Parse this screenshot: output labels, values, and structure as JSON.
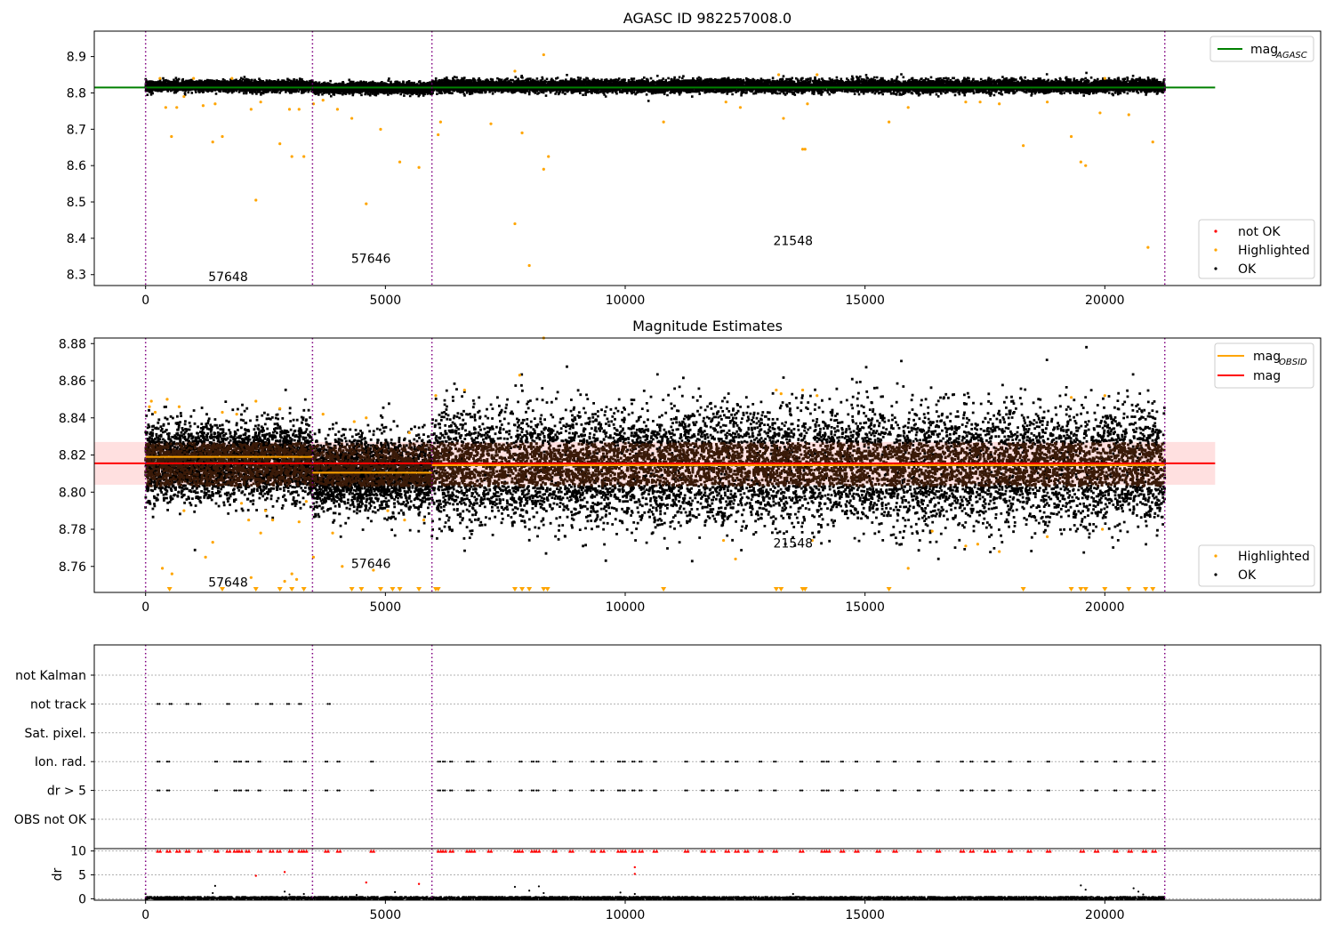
{
  "chart_data": [
    {
      "type": "scatter",
      "title": "AGASC ID 982257008.0",
      "xlabel": "",
      "ylabel": "",
      "xlim": [
        -1070,
        24500
      ],
      "ylim": [
        8.27,
        8.97
      ],
      "xticks": [
        0,
        5000,
        10000,
        15000,
        20000
      ],
      "yticks": [
        8.3,
        8.4,
        8.5,
        8.6,
        8.7,
        8.8,
        8.9
      ],
      "ytick_labels": [
        "8.3",
        "8.4",
        "8.5",
        "8.6",
        "8.7",
        "8.8",
        "8.9"
      ],
      "xtick_labels": [
        "0",
        "5000",
        "10000",
        "15000",
        "20000"
      ],
      "obsid_boundaries": [
        0,
        3480,
        5970,
        21250
      ],
      "obsid_labels": [
        {
          "text": "57648",
          "x": 1720,
          "y": 8.295
        },
        {
          "text": "57646",
          "x": 4700,
          "y": 8.345
        },
        {
          "text": "21548",
          "x": 13500,
          "y": 8.393
        }
      ],
      "mag_agasc": 8.815,
      "mag_agasc_xrange": [
        -1070,
        22300
      ],
      "legend_lines": [
        {
          "label": "mag",
          "sub": "AGASC",
          "color": "#008000"
        }
      ],
      "legend_points": [
        {
          "label": "not OK",
          "color": "#ff0000"
        },
        {
          "label": "Highlighted",
          "color": "#ffa500"
        },
        {
          "label": "OK",
          "color": "#000000"
        }
      ],
      "ok_segments": [
        {
          "x0": 0,
          "x1": 3480,
          "mean": 8.822,
          "spread": 0.014
        },
        {
          "x0": 3480,
          "x1": 5970,
          "mean": 8.816,
          "spread": 0.014
        },
        {
          "x0": 5970,
          "x1": 21250,
          "mean": 8.822,
          "spread": 0.017
        }
      ],
      "highlighted_points": [
        [
          300,
          8.84
        ],
        [
          420,
          8.76
        ],
        [
          540,
          8.68
        ],
        [
          650,
          8.76
        ],
        [
          800,
          8.79
        ],
        [
          1000,
          8.84
        ],
        [
          1200,
          8.765
        ],
        [
          1400,
          8.665
        ],
        [
          1450,
          8.77
        ],
        [
          1600,
          8.68
        ],
        [
          1800,
          8.84
        ],
        [
          2200,
          8.755
        ],
        [
          2300,
          8.505
        ],
        [
          2400,
          8.775
        ],
        [
          2800,
          8.66
        ],
        [
          3000,
          8.755
        ],
        [
          3050,
          8.625
        ],
        [
          3200,
          8.755
        ],
        [
          3300,
          8.625
        ],
        [
          3500,
          8.77
        ],
        [
          3700,
          8.78
        ],
        [
          4000,
          8.755
        ],
        [
          4300,
          8.73
        ],
        [
          4600,
          8.495
        ],
        [
          4900,
          8.7
        ],
        [
          5300,
          8.61
        ],
        [
          5700,
          8.595
        ],
        [
          6100,
          8.685
        ],
        [
          6150,
          8.72
        ],
        [
          7200,
          8.715
        ],
        [
          7700,
          8.86
        ],
        [
          7700,
          8.44
        ],
        [
          7850,
          8.69
        ],
        [
          8000,
          8.325
        ],
        [
          8300,
          8.59
        ],
        [
          8300,
          8.905
        ],
        [
          8400,
          8.625
        ],
        [
          10800,
          8.72
        ],
        [
          12100,
          8.775
        ],
        [
          12400,
          8.76
        ],
        [
          13200,
          8.85
        ],
        [
          13300,
          8.73
        ],
        [
          13700,
          8.645
        ],
        [
          13750,
          8.645
        ],
        [
          13800,
          8.77
        ],
        [
          14000,
          8.85
        ],
        [
          15500,
          8.72
        ],
        [
          15900,
          8.76
        ],
        [
          17100,
          8.775
        ],
        [
          17400,
          8.775
        ],
        [
          17800,
          8.77
        ],
        [
          18300,
          8.655
        ],
        [
          18800,
          8.775
        ],
        [
          19300,
          8.68
        ],
        [
          19500,
          8.61
        ],
        [
          19600,
          8.6
        ],
        [
          19900,
          8.745
        ],
        [
          20000,
          8.84
        ],
        [
          20500,
          8.74
        ],
        [
          20900,
          8.375
        ],
        [
          21000,
          8.665
        ]
      ]
    },
    {
      "type": "scatter",
      "title": "Magnitude Estimates",
      "xlabel": "",
      "ylabel": "",
      "xlim": [
        -1070,
        24500
      ],
      "ylim": [
        8.746,
        8.883
      ],
      "xticks": [
        0,
        5000,
        10000,
        15000,
        20000
      ],
      "xtick_labels": [
        "0",
        "5000",
        "10000",
        "15000",
        "20000"
      ],
      "yticks": [
        8.76,
        8.78,
        8.8,
        8.82,
        8.84,
        8.86,
        8.88
      ],
      "ytick_labels": [
        "8.76",
        "8.78",
        "8.80",
        "8.82",
        "8.84",
        "8.86",
        "8.88"
      ],
      "obsid_boundaries": [
        0,
        3480,
        5970,
        21250
      ],
      "obsid_labels": [
        {
          "text": "57648",
          "x": 1720,
          "y": 8.7515
        },
        {
          "text": "57646",
          "x": 4700,
          "y": 8.7615
        },
        {
          "text": "21548",
          "x": 13500,
          "y": 8.7725
        }
      ],
      "mag": 8.8155,
      "mag_band": [
        8.804,
        8.827
      ],
      "mag_xrange": [
        -1070,
        22300
      ],
      "mag_obsid": [
        {
          "x0": 0,
          "x1": 3480,
          "value": 8.819
        },
        {
          "x0": 3480,
          "x1": 5970,
          "value": 8.8105
        },
        {
          "x0": 5970,
          "x1": 21250,
          "value": 8.8145
        }
      ],
      "legend_lines": [
        {
          "label": "mag",
          "sub": "OBSID",
          "color": "#ffa500"
        },
        {
          "label": "mag",
          "sub": "",
          "color": "#ff0000"
        }
      ],
      "legend_points": [
        {
          "label": "Highlighted",
          "color": "#ffa500"
        },
        {
          "label": "OK",
          "color": "#000000"
        }
      ],
      "ok_segments": [
        {
          "x0": 0,
          "x1": 3480,
          "mean": 8.8175,
          "spread": 0.02
        },
        {
          "x0": 3480,
          "x1": 5970,
          "mean": 8.8105,
          "spread": 0.02
        },
        {
          "x0": 5970,
          "x1": 21250,
          "mean": 8.8145,
          "spread": 0.03
        }
      ],
      "highlighted_points": [
        [
          80,
          8.846
        ],
        [
          120,
          8.849
        ],
        [
          200,
          8.843
        ],
        [
          350,
          8.759
        ],
        [
          450,
          8.85
        ],
        [
          550,
          8.756
        ],
        [
          700,
          8.846
        ],
        [
          800,
          8.79
        ],
        [
          1250,
          8.765
        ],
        [
          1400,
          8.773
        ],
        [
          1600,
          8.843
        ],
        [
          1900,
          8.842
        ],
        [
          2000,
          8.794
        ],
        [
          2150,
          8.785
        ],
        [
          2200,
          8.754
        ],
        [
          2300,
          8.849
        ],
        [
          2400,
          8.778
        ],
        [
          2500,
          8.79
        ],
        [
          2650,
          8.785
        ],
        [
          2800,
          8.845
        ],
        [
          2900,
          8.752
        ],
        [
          3050,
          8.756
        ],
        [
          3150,
          8.753
        ],
        [
          3200,
          8.784
        ],
        [
          3350,
          8.795
        ],
        [
          3500,
          8.765
        ],
        [
          3700,
          8.842
        ],
        [
          3900,
          8.778
        ],
        [
          4100,
          8.76
        ],
        [
          4350,
          8.838
        ],
        [
          4600,
          8.84
        ],
        [
          4750,
          8.758
        ],
        [
          5050,
          8.79
        ],
        [
          5400,
          8.785
        ],
        [
          5500,
          8.832
        ],
        [
          5800,
          8.785
        ],
        [
          6050,
          8.852
        ],
        [
          6650,
          8.855
        ],
        [
          7800,
          8.863
        ],
        [
          8300,
          8.883
        ],
        [
          12050,
          8.774
        ],
        [
          12300,
          8.764
        ],
        [
          13150,
          8.855
        ],
        [
          13250,
          8.853
        ],
        [
          13700,
          8.855
        ],
        [
          13900,
          8.774
        ],
        [
          14000,
          8.852
        ],
        [
          15900,
          8.759
        ],
        [
          16400,
          8.779
        ],
        [
          17100,
          8.771
        ],
        [
          17350,
          8.772
        ],
        [
          17800,
          8.768
        ],
        [
          18800,
          8.776
        ],
        [
          19300,
          8.851
        ],
        [
          19950,
          8.78
        ],
        [
          20000,
          8.852
        ]
      ],
      "below_markers": [
        500,
        1600,
        2300,
        2800,
        3050,
        3300,
        4300,
        4500,
        4900,
        5150,
        5300,
        5700,
        6050,
        6100,
        7700,
        7850,
        8000,
        8300,
        8380,
        10800,
        13150,
        13250,
        13700,
        13750,
        15500,
        18300,
        19300,
        19500,
        19600,
        20000,
        20500,
        20850,
        21000
      ]
    },
    {
      "type": "scatter",
      "title": "",
      "xlabel": "",
      "ylabel": "",
      "xlim": [
        -1070,
        24500
      ],
      "categories": [
        "not Kalman",
        "not track",
        "Sat. pixel.",
        "Ion. rad.",
        "dr > 5",
        "OBS not OK"
      ],
      "obsid_boundaries": [
        0,
        3480,
        5970,
        21250
      ],
      "flag_points": {
        "not Kalman": [],
        "not track": [
          250,
          500,
          850,
          1100,
          1700,
          2300,
          2600,
          2950,
          3200,
          3800
        ],
        "Sat. pixel.": [],
        "Ion. rad.": [
          250,
          450,
          1450,
          1850,
          1950,
          2100,
          2350,
          2900,
          3000,
          3300,
          3750,
          4000,
          4700,
          6100,
          6200,
          6350,
          6700,
          6800,
          7150,
          7800,
          8050,
          8150,
          8500,
          8850,
          9300,
          9500,
          9850,
          9950,
          10150,
          10300,
          10600,
          11250,
          11600,
          11800,
          12100,
          12300,
          12800,
          13100,
          13650,
          14100,
          14200,
          14500,
          14800,
          15250,
          15600,
          16100,
          16500,
          17000,
          17200,
          17500,
          17650,
          18000,
          18400,
          18800,
          19500,
          19800,
          20200,
          20500,
          20800,
          21000
        ],
        "dr > 5": [
          250,
          450,
          1450,
          1850,
          1950,
          2100,
          2350,
          2900,
          3000,
          3300,
          3750,
          4000,
          4700,
          6100,
          6200,
          6350,
          6700,
          6800,
          7150,
          7800,
          8050,
          8150,
          8500,
          8850,
          9300,
          9500,
          9850,
          9950,
          10150,
          10300,
          10600,
          11250,
          11600,
          11800,
          12100,
          12300,
          12800,
          13100,
          13650,
          14100,
          14200,
          14500,
          14800,
          15250,
          15600,
          16100,
          16500,
          17000,
          17200,
          17500,
          17650,
          18000,
          18400,
          18800,
          19500,
          19800,
          20200,
          20500,
          20800,
          21000
        ],
        "OBS not OK": []
      }
    },
    {
      "type": "scatter",
      "title": "",
      "xlabel": "",
      "ylabel": "dr",
      "xlim": [
        -1070,
        24500
      ],
      "ylim": [
        -0.3,
        10.5
      ],
      "yticks": [
        0,
        5,
        10
      ],
      "ytick_labels": [
        "0",
        "5",
        "10"
      ],
      "xticks": [
        0,
        5000,
        10000,
        15000,
        20000
      ],
      "xtick_labels": [
        "0",
        "5000",
        "10000",
        "15000",
        "20000"
      ],
      "obsid_boundaries": [
        0,
        3480,
        5970,
        21250
      ],
      "dr_ok_baseline": [
        0.0,
        0.6
      ],
      "dr_ok_extra": [
        [
          0,
          1.0
        ],
        [
          1400,
          1.2
        ],
        [
          1450,
          2.7
        ],
        [
          2900,
          1.5
        ],
        [
          3000,
          0.9
        ],
        [
          3300,
          1.0
        ],
        [
          4400,
          0.8
        ],
        [
          5200,
          1.4
        ],
        [
          7700,
          2.5
        ],
        [
          8000,
          1.7
        ],
        [
          8200,
          2.6
        ],
        [
          8300,
          1.2
        ],
        [
          9900,
          1.3
        ],
        [
          10200,
          1.0
        ],
        [
          13500,
          1.0
        ],
        [
          19500,
          2.8
        ],
        [
          19600,
          1.9
        ],
        [
          20600,
          2.2
        ],
        [
          20700,
          1.5
        ],
        [
          20800,
          0.9
        ]
      ],
      "dr_high_points": [
        [
          2300,
          4.8
        ],
        [
          2900,
          5.6
        ],
        [
          4600,
          3.4
        ],
        [
          5700,
          3.1
        ],
        [
          10200,
          6.6
        ],
        [
          10200,
          5.2
        ]
      ],
      "dr_capped_x": [
        250,
        450,
        650,
        850,
        1100,
        1450,
        1700,
        1850,
        1950,
        2100,
        2350,
        2600,
        2750,
        3000,
        3200,
        3300,
        3750,
        4000,
        4700,
        6100,
        6200,
        6350,
        6700,
        6800,
        7150,
        7700,
        7800,
        8050,
        8150,
        8500,
        8850,
        9300,
        9500,
        9850,
        9950,
        10150,
        10300,
        10600,
        11250,
        11600,
        11800,
        12100,
        12300,
        12500,
        12800,
        13100,
        13650,
        14100,
        14200,
        14500,
        14800,
        15250,
        15600,
        16100,
        16500,
        17000,
        17200,
        17500,
        17650,
        18000,
        18400,
        18800,
        19500,
        19800,
        20200,
        20500,
        20800,
        21000
      ]
    }
  ]
}
